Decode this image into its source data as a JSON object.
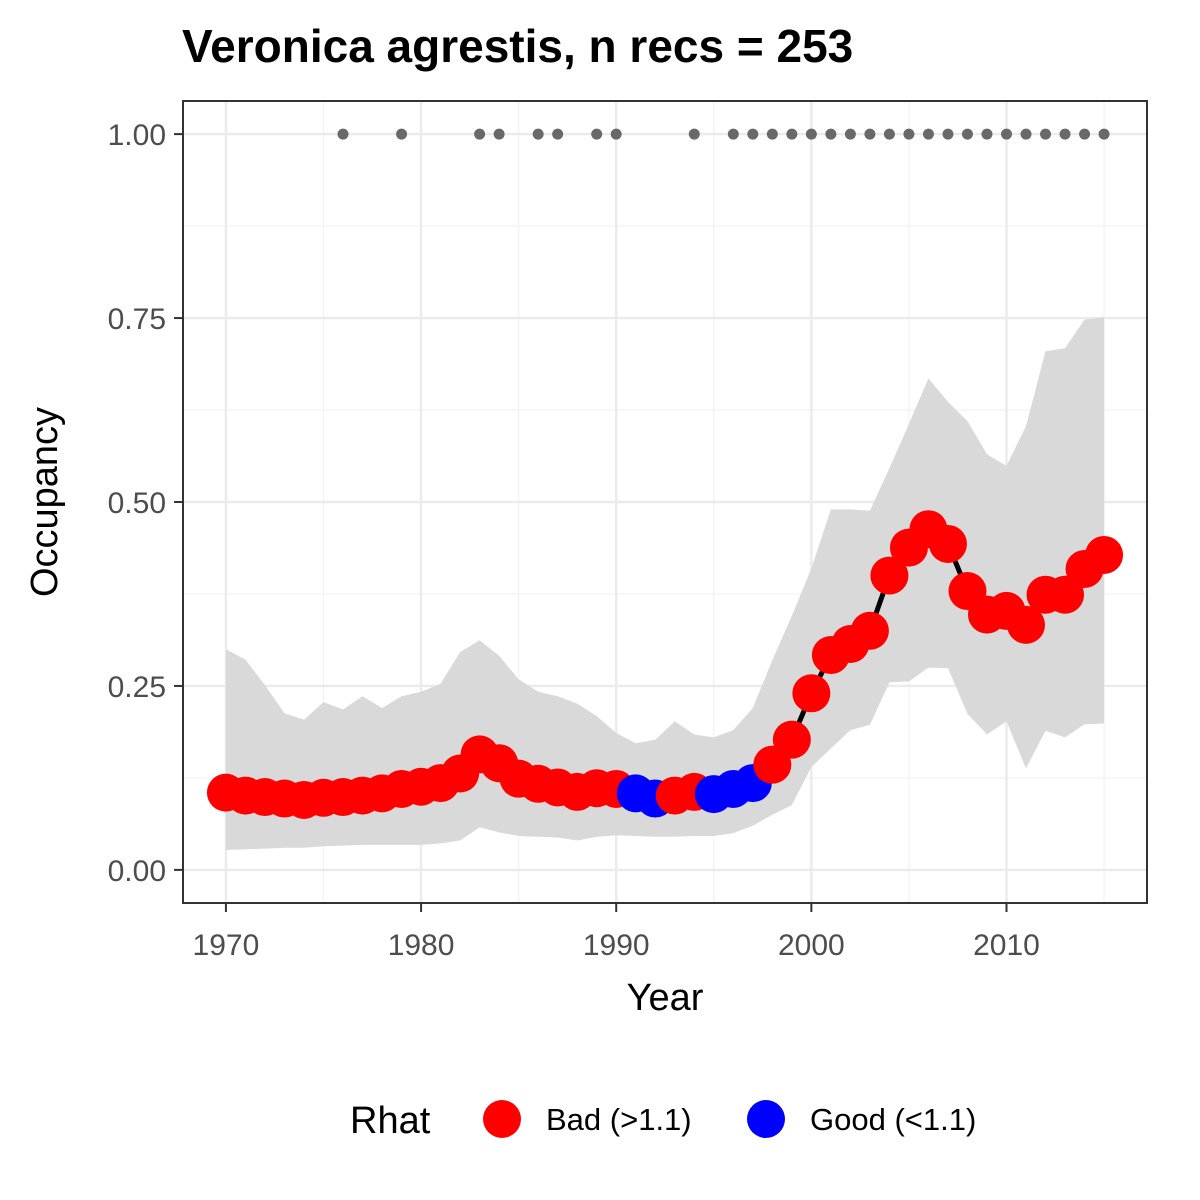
{
  "chart_data": {
    "type": "line",
    "title": "Veronica agrestis, n recs = 253",
    "xlabel": "Year",
    "ylabel": "Occupancy",
    "xlim": [
      1967.8,
      2017.2
    ],
    "ylim": [
      -0.045,
      1.045
    ],
    "x_ticks": [
      1970,
      1980,
      1990,
      2000,
      2010
    ],
    "x_tick_labels": [
      "1970",
      "1980",
      "1990",
      "2000",
      "2010"
    ],
    "y_ticks": [
      0,
      0.25,
      0.5,
      0.75,
      1.0
    ],
    "y_tick_labels": [
      "0.00",
      "0.25",
      "0.50",
      "0.75",
      "1.00"
    ],
    "grid": true,
    "legend_position": "bottom",
    "legend": {
      "title": "Rhat",
      "entries": [
        {
          "label": "Bad (>1.1)",
          "color": "#ff0000"
        },
        {
          "label": "Good (<1.1)",
          "color": "#0000ff"
        }
      ]
    },
    "colors": {
      "bad": "#ff0000",
      "good": "#0000ff",
      "line": "#000000",
      "ribbon": "#d9d9d9",
      "record_dot": "#696969"
    },
    "series": [
      {
        "x": [
          1970,
          1971,
          1972,
          1973,
          1974,
          1975,
          1976,
          1977,
          1978,
          1979,
          1980,
          1981,
          1982,
          1983,
          1984,
          1985,
          1986,
          1987,
          1988,
          1989,
          1990,
          1991,
          1992,
          1993,
          1994,
          1995,
          1996,
          1997,
          1998,
          1999,
          2000,
          2001,
          2002,
          2003,
          2004,
          2005,
          2006,
          2007,
          2008,
          2009,
          2010,
          2011,
          2012,
          2013,
          2014,
          2015
        ],
        "y": [
          0.105,
          0.101,
          0.099,
          0.097,
          0.095,
          0.098,
          0.099,
          0.101,
          0.104,
          0.11,
          0.113,
          0.118,
          0.131,
          0.157,
          0.145,
          0.124,
          0.117,
          0.112,
          0.106,
          0.111,
          0.11,
          0.104,
          0.097,
          0.101,
          0.106,
          0.103,
          0.11,
          0.118,
          0.143,
          0.177,
          0.24,
          0.292,
          0.307,
          0.325,
          0.4,
          0.438,
          0.463,
          0.443,
          0.379,
          0.347,
          0.352,
          0.333,
          0.374,
          0.374,
          0.409,
          0.428
        ],
        "lower": [
          0.027,
          0.028,
          0.029,
          0.03,
          0.03,
          0.032,
          0.033,
          0.034,
          0.034,
          0.034,
          0.034,
          0.036,
          0.04,
          0.058,
          0.051,
          0.046,
          0.045,
          0.044,
          0.04,
          0.045,
          0.047,
          0.046,
          0.045,
          0.045,
          0.046,
          0.046,
          0.05,
          0.06,
          0.075,
          0.088,
          0.14,
          0.165,
          0.19,
          0.197,
          0.255,
          0.256,
          0.275,
          0.274,
          0.212,
          0.184,
          0.202,
          0.138,
          0.189,
          0.18,
          0.198,
          0.199
        ],
        "upper": [
          0.3,
          0.286,
          0.251,
          0.213,
          0.204,
          0.228,
          0.218,
          0.236,
          0.22,
          0.236,
          0.242,
          0.253,
          0.296,
          0.312,
          0.291,
          0.259,
          0.242,
          0.236,
          0.226,
          0.209,
          0.186,
          0.172,
          0.177,
          0.202,
          0.184,
          0.18,
          0.19,
          0.22,
          0.285,
          0.345,
          0.41,
          0.49,
          0.49,
          0.488,
          0.546,
          0.606,
          0.668,
          0.636,
          0.61,
          0.565,
          0.549,
          0.603,
          0.705,
          0.709,
          0.748,
          0.751
        ],
        "rhat": [
          "Bad",
          "Bad",
          "Bad",
          "Bad",
          "Bad",
          "Bad",
          "Bad",
          "Bad",
          "Bad",
          "Bad",
          "Bad",
          "Bad",
          "Bad",
          "Bad",
          "Bad",
          "Bad",
          "Bad",
          "Bad",
          "Bad",
          "Bad",
          "Bad",
          "Good",
          "Good",
          "Bad",
          "Bad",
          "Good",
          "Good",
          "Good",
          "Bad",
          "Bad",
          "Bad",
          "Bad",
          "Bad",
          "Bad",
          "Bad",
          "Bad",
          "Bad",
          "Bad",
          "Bad",
          "Bad",
          "Bad",
          "Bad",
          "Bad",
          "Bad",
          "Bad",
          "Bad"
        ]
      }
    ],
    "record_years": [
      1976,
      1979,
      1983,
      1984,
      1986,
      1987,
      1989,
      1990,
      1994,
      1996,
      1997,
      1998,
      1999,
      2000,
      2001,
      2002,
      2003,
      2004,
      2005,
      2006,
      2007,
      2008,
      2009,
      2010,
      2011,
      2012,
      2013,
      2014,
      2015
    ],
    "record_y": 1.0
  }
}
